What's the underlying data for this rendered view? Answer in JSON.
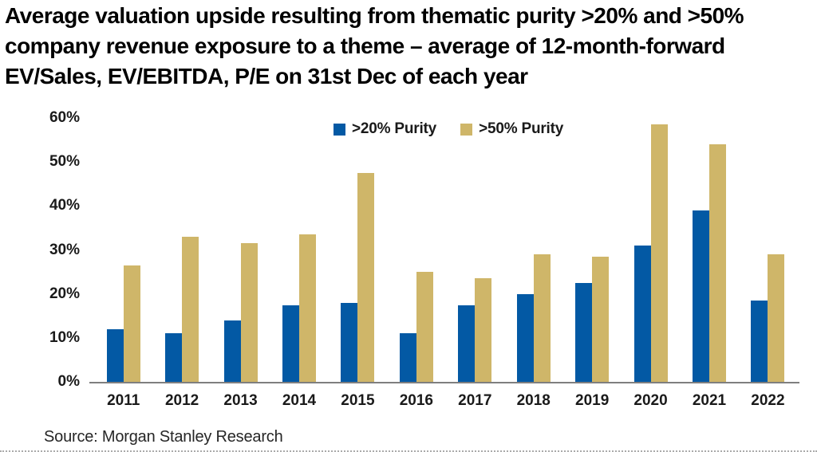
{
  "title": {
    "lines": [
      "Average valuation upside resulting from thematic purity >20% and >50%",
      "company revenue exposure to a theme – average of 12-month-forward",
      "EV/Sales, EV/EBITDA, P/E on 31st Dec of each year"
    ]
  },
  "source": "Source: Morgan Stanley Research",
  "colors": {
    "series_blue": "#0359A4",
    "series_gold": "#CFB669",
    "axis_line": "#7F7F7F",
    "text": "#1A1A1A"
  },
  "chart_data": {
    "type": "bar",
    "title": "Average valuation upside resulting from thematic purity >20% and >50% company revenue exposure to a theme – average of 12-month-forward EV/Sales, EV/EBITDA, P/E on 31st Dec of each year",
    "categories": [
      "2011",
      "2012",
      "2013",
      "2014",
      "2015",
      "2016",
      "2017",
      "2018",
      "2019",
      "2020",
      "2021",
      "2022"
    ],
    "series": [
      {
        "name": ">20% Purity",
        "color": "#0359A4",
        "values": [
          12,
          11,
          14,
          17.5,
          18,
          11,
          17.5,
          20,
          22.5,
          31,
          39,
          18.5
        ]
      },
      {
        "name": ">50% Purity",
        "color": "#CFB669",
        "values": [
          26.5,
          33,
          31.5,
          33.5,
          47.5,
          25,
          23.5,
          29,
          28.5,
          58.5,
          54,
          29
        ]
      }
    ],
    "xlabel": "",
    "ylabel": "",
    "ylim": [
      0,
      60
    ],
    "yticks": [
      "0%",
      "10%",
      "20%",
      "30%",
      "40%",
      "50%",
      "60%"
    ],
    "unit": "percent",
    "grid": false,
    "legend_position": "top-center",
    "source": "Source: Morgan Stanley Research"
  }
}
